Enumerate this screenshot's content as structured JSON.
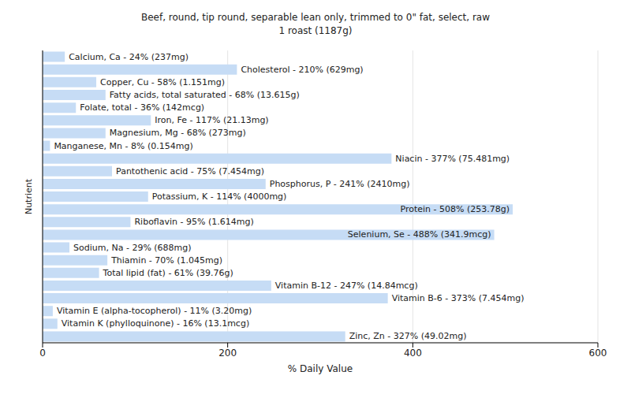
{
  "chart_data": {
    "type": "bar",
    "orientation": "horizontal",
    "title": "Beef, round, tip round, separable lean only, trimmed to 0\" fat, select, raw",
    "subtitle": "1 roast (1187g)",
    "x_label": "% Daily Value",
    "y_label": "Nutrient",
    "categories": [
      "Calcium, Ca",
      "Cholesterol",
      "Copper, Cu",
      "Fatty acids, total saturated",
      "Folate, total",
      "Iron, Fe",
      "Magnesium, Mg",
      "Manganese, Mn",
      "Niacin",
      "Pantothenic acid",
      "Phosphorus, P",
      "Potassium, K",
      "Protein",
      "Riboflavin",
      "Selenium, Se",
      "Sodium, Na",
      "Thiamin",
      "Total lipid (fat)",
      "Vitamin B-12",
      "Vitamin B-6",
      "Vitamin E (alpha-tocopherol)",
      "Vitamin K (phylloquinone)",
      "Zinc, Zn"
    ],
    "values": [
      24,
      210,
      58,
      68,
      36,
      117,
      68,
      8,
      377,
      75,
      241,
      114,
      508,
      95,
      488,
      29,
      70,
      61,
      247,
      373,
      11,
      16,
      327
    ],
    "value_labels": [
      "Calcium, Ca - 24% (237mg)",
      "Cholesterol - 210% (629mg)",
      "Copper, Cu - 58% (1.151mg)",
      "Fatty acids, total saturated - 68% (13.615g)",
      "Folate, total - 36% (142mcg)",
      "Iron, Fe - 117% (21.13mg)",
      "Magnesium, Mg - 68% (273mg)",
      "Manganese, Mn - 8% (0.154mg)",
      "Niacin - 377% (75.481mg)",
      "Pantothenic acid - 75% (7.454mg)",
      "Phosphorus, P - 241% (2410mg)",
      "Potassium, K - 114% (4000mg)",
      "Protein - 508% (253.78g)",
      "Riboflavin - 95% (1.614mg)",
      "Selenium, Se - 488% (341.9mcg)",
      "Sodium, Na - 29% (688mg)",
      "Thiamin - 70% (1.045mg)",
      "Total lipid (fat) - 61% (39.76g)",
      "Vitamin B-12 - 247% (14.84mcg)",
      "Vitamin B-6 - 373% (7.454mg)",
      "Vitamin E (alpha-tocopherol) - 11% (3.20mg)",
      "Vitamin K (phylloquinone) - 16% (13.1mcg)",
      "Zinc, Zn - 327% (49.02mg)"
    ],
    "color": "#c6dcf5",
    "xlim": [
      0,
      600
    ],
    "xticks": [
      0,
      200,
      400,
      600
    ],
    "grid": true,
    "data_labels": true,
    "tick_labels": "x"
  }
}
